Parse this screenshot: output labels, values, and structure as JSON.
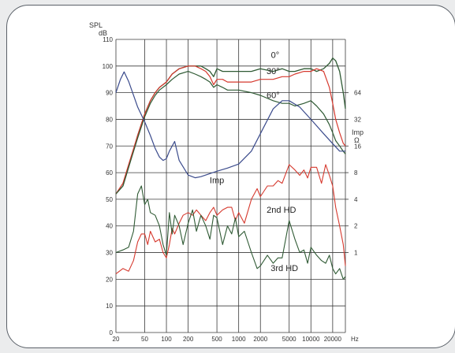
{
  "chart_data": {
    "type": "line",
    "x_scale": "log",
    "xlim": [
      20,
      30000
    ],
    "x_ticks": [
      20,
      50,
      100,
      200,
      500,
      1000,
      2000,
      5000,
      10000,
      20000
    ],
    "x_tick_labels": [
      "20",
      "50",
      "100",
      "200",
      "500",
      "1000",
      "2000",
      "5000",
      "10000",
      "20000"
    ],
    "x_unit": "Hz",
    "y_title": "SPL",
    "y_unit": "dB",
    "ylim": [
      0,
      110
    ],
    "y_ticks": [
      0,
      10,
      20,
      30,
      40,
      50,
      60,
      70,
      80,
      90,
      100,
      110
    ],
    "y2_title": "Imp",
    "y2_unit": "Ω",
    "y2_scale": "log2",
    "y2_ticks": [
      1,
      2,
      4,
      8,
      16,
      32,
      64
    ],
    "y2_reference": {
      "value": 1,
      "at_spl_db": 30,
      "db_per_octave": 10
    },
    "grid": true,
    "series": [
      {
        "name": "0°",
        "axis": "spl",
        "color": "#2f5a34",
        "x": [
          20,
          25,
          30,
          40,
          50,
          60,
          70,
          80,
          100,
          120,
          150,
          200,
          250,
          300,
          350,
          400,
          450,
          500,
          600,
          700,
          800,
          1000,
          1500,
          2000,
          3000,
          4000,
          5000,
          6000,
          8000,
          10000,
          12000,
          15000,
          18000,
          20000,
          22000,
          25000,
          28000,
          30000
        ],
        "y": [
          52,
          55,
          62,
          74,
          82,
          87,
          90,
          92,
          94,
          97,
          99,
          100,
          100,
          100,
          99,
          98,
          96,
          99,
          98,
          98,
          98,
          98,
          98,
          99,
          98,
          99,
          98,
          98,
          99,
          99,
          98,
          99,
          101,
          103,
          102,
          98,
          90,
          84
        ]
      },
      {
        "name": "30°",
        "axis": "spl",
        "color": "#d6392e",
        "x": [
          20,
          25,
          30,
          40,
          50,
          60,
          70,
          80,
          100,
          120,
          150,
          200,
          250,
          300,
          350,
          400,
          450,
          500,
          600,
          700,
          800,
          1000,
          1500,
          2000,
          3000,
          4000,
          5000,
          6000,
          8000,
          10000,
          12000,
          15000,
          18000,
          20000,
          22000,
          25000,
          28000,
          30000
        ],
        "y": [
          52,
          56,
          63,
          74,
          82,
          87,
          90,
          92,
          94,
          97,
          99,
          100,
          100,
          99,
          98,
          96,
          93,
          95,
          95,
          94,
          94,
          94,
          94,
          95,
          95,
          96,
          96,
          97,
          98,
          98,
          99,
          98,
          92,
          86,
          80,
          75,
          71,
          70
        ]
      },
      {
        "name": "60°",
        "axis": "spl",
        "color": "#2f5a34",
        "x": [
          20,
          25,
          30,
          40,
          50,
          60,
          70,
          80,
          100,
          120,
          150,
          200,
          250,
          300,
          350,
          400,
          450,
          500,
          600,
          700,
          800,
          1000,
          1500,
          2000,
          3000,
          4000,
          5000,
          6000,
          8000,
          10000,
          12000,
          15000,
          18000,
          20000,
          22000,
          25000,
          28000,
          30000
        ],
        "y": [
          52,
          55,
          62,
          73,
          81,
          86,
          89,
          91,
          93,
          95,
          97,
          98,
          97,
          96,
          95,
          94,
          92,
          93,
          92,
          91,
          91,
          91,
          90,
          89,
          87,
          86,
          86,
          85,
          86,
          87,
          85,
          82,
          78,
          75,
          72,
          70,
          68,
          67
        ]
      },
      {
        "name": "Imp",
        "axis": "impedance",
        "color": "#3b4b8c",
        "x": [
          20,
          23,
          26,
          30,
          35,
          40,
          50,
          60,
          70,
          80,
          90,
          100,
          110,
          130,
          150,
          200,
          250,
          300,
          400,
          500,
          700,
          1000,
          1500,
          2000,
          3000,
          4000,
          5000,
          7000,
          10000,
          15000,
          20000,
          25000,
          30000
        ],
        "y": [
          64,
          90,
          110,
          86,
          60,
          44,
          30,
          21,
          15,
          12,
          11,
          11.5,
          14,
          18,
          11,
          7.5,
          7,
          7.2,
          7.8,
          8.3,
          9,
          10,
          14,
          22,
          42,
          52,
          52,
          44,
          32,
          22,
          17,
          14,
          14
        ]
      }
    ],
    "distortion_series": [
      {
        "name": "2nd HD",
        "axis": "spl",
        "color": "#d6392e",
        "x": [
          20,
          25,
          30,
          35,
          40,
          45,
          50,
          55,
          60,
          70,
          80,
          90,
          100,
          110,
          120,
          130,
          150,
          170,
          200,
          230,
          260,
          300,
          350,
          400,
          450,
          500,
          600,
          700,
          800,
          900,
          1000,
          1200,
          1500,
          1800,
          2000,
          2500,
          3000,
          3500,
          4000,
          5000,
          6000,
          7000,
          8000,
          9000,
          10000,
          12000,
          14000,
          16000,
          18000,
          20000,
          22000,
          25000,
          28000,
          30000
        ],
        "y": [
          22,
          24,
          23,
          27,
          34,
          37,
          37,
          33,
          38,
          34,
          35,
          30,
          28,
          33,
          39,
          37,
          41,
          44,
          45,
          44,
          46,
          44,
          42,
          45,
          47,
          44,
          46,
          47,
          47,
          42,
          45,
          41,
          50,
          54,
          51,
          55,
          55,
          57,
          56,
          63,
          61,
          59,
          61,
          58,
          62,
          62,
          56,
          63,
          59,
          55,
          47,
          40,
          33,
          25
        ]
      },
      {
        "name": "3rd HD",
        "axis": "spl",
        "color": "#2f5a34",
        "x": [
          20,
          25,
          30,
          35,
          40,
          45,
          50,
          55,
          60,
          70,
          80,
          90,
          100,
          110,
          120,
          130,
          150,
          170,
          200,
          230,
          260,
          300,
          350,
          400,
          450,
          500,
          600,
          700,
          800,
          900,
          1000,
          1200,
          1500,
          1800,
          2000,
          2500,
          3000,
          3500,
          4000,
          5000,
          6000,
          7000,
          8000,
          9000,
          10000,
          12000,
          14000,
          16000,
          18000,
          20000,
          22000,
          25000,
          28000,
          30000
        ],
        "y": [
          30,
          31,
          32,
          38,
          52,
          55,
          48,
          50,
          45,
          44,
          40,
          33,
          29,
          45,
          37,
          44,
          40,
          33,
          41,
          46,
          38,
          44,
          40,
          35,
          44,
          43,
          33,
          40,
          37,
          43,
          36,
          38,
          30,
          24,
          25,
          29,
          26,
          28,
          28,
          42,
          35,
          30,
          31,
          26,
          32,
          29,
          27,
          26,
          29,
          24,
          22,
          24,
          20,
          21
        ]
      }
    ],
    "annotations": [
      {
        "text": "0°",
        "x": 3200,
        "y": 103
      },
      {
        "text": "30°",
        "x": 3000,
        "y": 97
      },
      {
        "text": "60°",
        "x": 3000,
        "y": 88
      },
      {
        "text": "Imp",
        "x": 500,
        "y": 56
      },
      {
        "text": "2nd HD",
        "x": 3900,
        "y": 45
      },
      {
        "text": "3rd HD",
        "x": 4300,
        "y": 23
      }
    ]
  }
}
